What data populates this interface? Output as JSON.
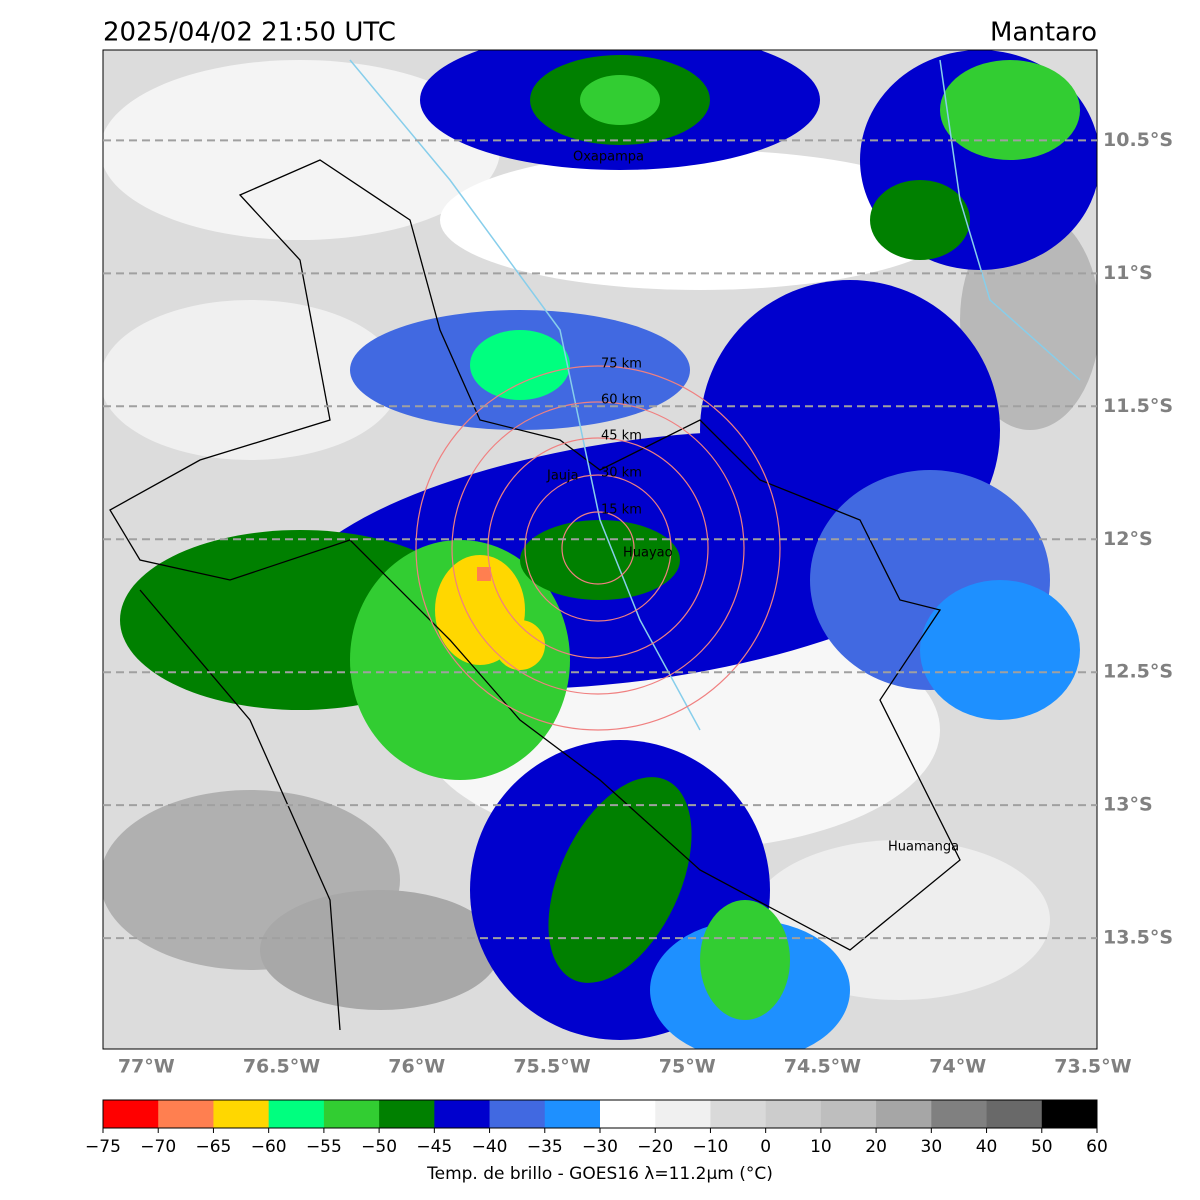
{
  "header": {
    "timestamp": "2025/04/02 21:50 UTC",
    "region": "Mantaro"
  },
  "map": {
    "lonlim": [
      -77.16,
      -73.485
    ],
    "latlim": [
      -13.917,
      -10.16
    ],
    "grid": true,
    "lon_ticks": [
      {
        "value": -77,
        "label": "77°W"
      },
      {
        "value": -76.5,
        "label": "76.5°W"
      },
      {
        "value": -76,
        "label": "76°W"
      },
      {
        "value": -75.5,
        "label": "75.5°W"
      },
      {
        "value": -75,
        "label": "75°W"
      },
      {
        "value": -74.5,
        "label": "74.5°W"
      },
      {
        "value": -74,
        "label": "74°W"
      },
      {
        "value": -73.5,
        "label": "73.5°W"
      }
    ],
    "lat_ticks": [
      {
        "value": -10.5,
        "label": "10.5°S"
      },
      {
        "value": -11,
        "label": "11°S"
      },
      {
        "value": -11.5,
        "label": "11.5°S"
      },
      {
        "value": -12,
        "label": "12°S"
      },
      {
        "value": -12.5,
        "label": "12.5°S"
      },
      {
        "value": -13,
        "label": "13°S"
      },
      {
        "value": -13.5,
        "label": "13.5°S"
      }
    ],
    "places": [
      "Oxapampa",
      "Jauja",
      "Huayao",
      "Huamanga"
    ],
    "range_rings": [
      "15 km",
      "30 km",
      "45 km",
      "60 km",
      "75 km"
    ]
  },
  "colorbar": {
    "label": "Temp. de brillo - GOES16 λ=11.2μm (°C)",
    "ticks": [
      {
        "value": -75,
        "label": "−75"
      },
      {
        "value": -70,
        "label": "−70"
      },
      {
        "value": -65,
        "label": "−65"
      },
      {
        "value": -60,
        "label": "−60"
      },
      {
        "value": -55,
        "label": "−55"
      },
      {
        "value": -50,
        "label": "−50"
      },
      {
        "value": -45,
        "label": "−45"
      },
      {
        "value": -40,
        "label": "−40"
      },
      {
        "value": -35,
        "label": "−35"
      },
      {
        "value": -30,
        "label": "−30"
      },
      {
        "value": -20,
        "label": "−20"
      },
      {
        "value": -10,
        "label": "−10"
      },
      0,
      10,
      20,
      30,
      40,
      50,
      60
    ],
    "colors": [
      "#ff0000",
      "#ff7f50",
      "#ffd700",
      "#00ff7f",
      "#32cd32",
      "#008000",
      "#0000cd",
      "#4169e1",
      "#1e90ff",
      "#ffffff",
      "#f0f0f0",
      "#d9d9d9",
      "#cccccc",
      "#bebebe",
      "#a6a6a6",
      "#808080",
      "#696969",
      "#000000"
    ]
  }
}
